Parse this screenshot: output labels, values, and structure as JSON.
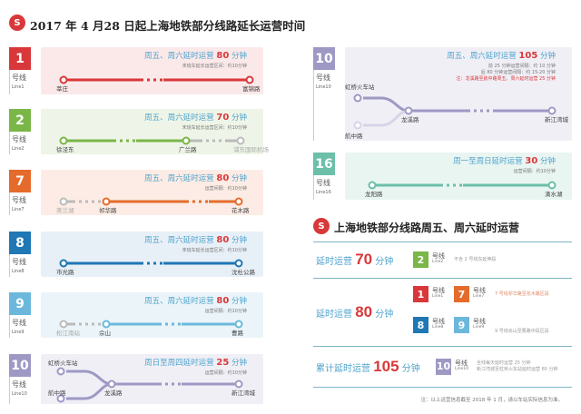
{
  "header": {
    "logo": "shanghai-metro-logo",
    "title": "2017 年 4 月28 日起上海地铁部分线路延长运营时间"
  },
  "lines": [
    {
      "num": "1",
      "color": "#d9383a",
      "bg": "#fbe9ea",
      "label": "号线",
      "en": "Line1",
      "head_pre": "周五、周六延时运营",
      "minutes": "80",
      "unit": "分钟",
      "notes": [
        "末班车延长运营区间：约10分钟"
      ],
      "stations": [
        "莘庄",
        "富锦路"
      ]
    },
    {
      "num": "2",
      "color": "#7ab648",
      "bg": "#eef5e8",
      "label": "号线",
      "en": "Line2",
      "head_pre": "周五、周六延时运营",
      "minutes": "70",
      "unit": "分钟",
      "notes": [
        "末班车延长运营区间：约10分钟"
      ],
      "stations": [
        "徐泾东",
        "广兰路",
        "浦东国际机场"
      ]
    },
    {
      "num": "7",
      "color": "#e46b2c",
      "bg": "#fcece5",
      "label": "号线",
      "en": "Line7",
      "head_pre": "周五、周六延时运营",
      "minutes": "80",
      "unit": "分钟",
      "notes": [
        "运营间隔：约10分钟"
      ],
      "stations": [
        "美兰湖",
        "祁华路",
        "花木路"
      ]
    },
    {
      "num": "8",
      "color": "#1f77b4",
      "bg": "#e8f0f7",
      "label": "号线",
      "en": "Line8",
      "head_pre": "周五、周六延时运营",
      "minutes": "80",
      "unit": "分钟",
      "notes": [
        "末班车延长运营区间：约10分钟"
      ],
      "stations": [
        "市光路",
        "沈杜公路"
      ]
    },
    {
      "num": "9",
      "color": "#6bb8dc",
      "bg": "#eaf4f9",
      "label": "号线",
      "en": "Line9",
      "head_pre": "周五、周六延时运营",
      "minutes": "80",
      "unit": "分钟",
      "notes": [
        "运营间隔：约10分钟"
      ],
      "stations": [
        "松江南站",
        "佘山",
        "曹路"
      ]
    },
    {
      "num": "10",
      "color": "#9d99c4",
      "bg": "#f0eff6",
      "label": "号线",
      "en": "Line10",
      "head_pre": "周日至周四延时运营",
      "minutes": "25",
      "unit": "分钟",
      "notes": [
        "运营间隔：约10分钟"
      ],
      "stations": [
        "虹桥火车站",
        "航中路",
        "龙溪路",
        "新江湾城"
      ]
    },
    {
      "num": "10",
      "color": "#9d99c4",
      "bg": "#f0eff6",
      "label": "号线",
      "en": "Line10",
      "head_pre": "周五、周六延时运营",
      "minutes": "105",
      "unit": "分钟",
      "notes": [
        "前 25 分钟运营间隔：约 10 分钟",
        "后 80 分钟运营间隔：约 15-20 分钟",
        "注：龙溪路至航中路周五、周六延时运营 25 分钟"
      ],
      "stations": [
        "虹桥火车站",
        "航中路",
        "龙溪路",
        "新江湾城"
      ]
    },
    {
      "num": "16",
      "color": "#6cbfa8",
      "bg": "#e9f5f1",
      "label": "号线",
      "en": "Line16",
      "head_pre": "周一至周日延时运营",
      "minutes": "30",
      "unit": "分钟",
      "notes": [
        "运营间隔：约10分钟"
      ],
      "stations": [
        "龙阳路",
        "滴水湖"
      ]
    }
  ],
  "summary": {
    "title": "上海地铁部分线路周五、周六延时运营",
    "rows": [
      {
        "pre": "延时运营",
        "minutes": "70",
        "unit": "分钟",
        "items": [
          {
            "num": "2",
            "color": "#7ab648",
            "label": "号线",
            "en": "Line2"
          }
        ],
        "descs": [
          "不含 2 号线东延伸段"
        ]
      },
      {
        "pre": "延时运营",
        "minutes": "80",
        "unit": "分钟",
        "items": [
          {
            "num": "1",
            "color": "#d9383a",
            "label": "号线",
            "en": "Line1"
          },
          {
            "num": "7",
            "color": "#e46b2c",
            "label": "号线",
            "en": "Line7"
          },
          {
            "num": "8",
            "color": "#1f77b4",
            "label": "号线",
            "en": "Line8"
          },
          {
            "num": "9",
            "color": "#6bb8dc",
            "label": "号线",
            "en": "Line9"
          }
        ],
        "descs": [
          "7 号线祁华路至花木路区段",
          "9 号线佘山至曹路中段区段"
        ]
      },
      {
        "pre": "累计延时运营",
        "minutes": "105",
        "unit": "分钟",
        "items": [
          {
            "num": "10",
            "color": "#9d99c4",
            "label": "号线",
            "en": "Line10"
          }
        ],
        "descs": [
          "全线每天延时运营 25 分钟",
          "新江湾城至虹桥火车站延时运营 80 分钟"
        ]
      }
    ],
    "footnote": "注：以上运营信息截至 2018 年 1 月，请以车站实际信息为准。"
  }
}
